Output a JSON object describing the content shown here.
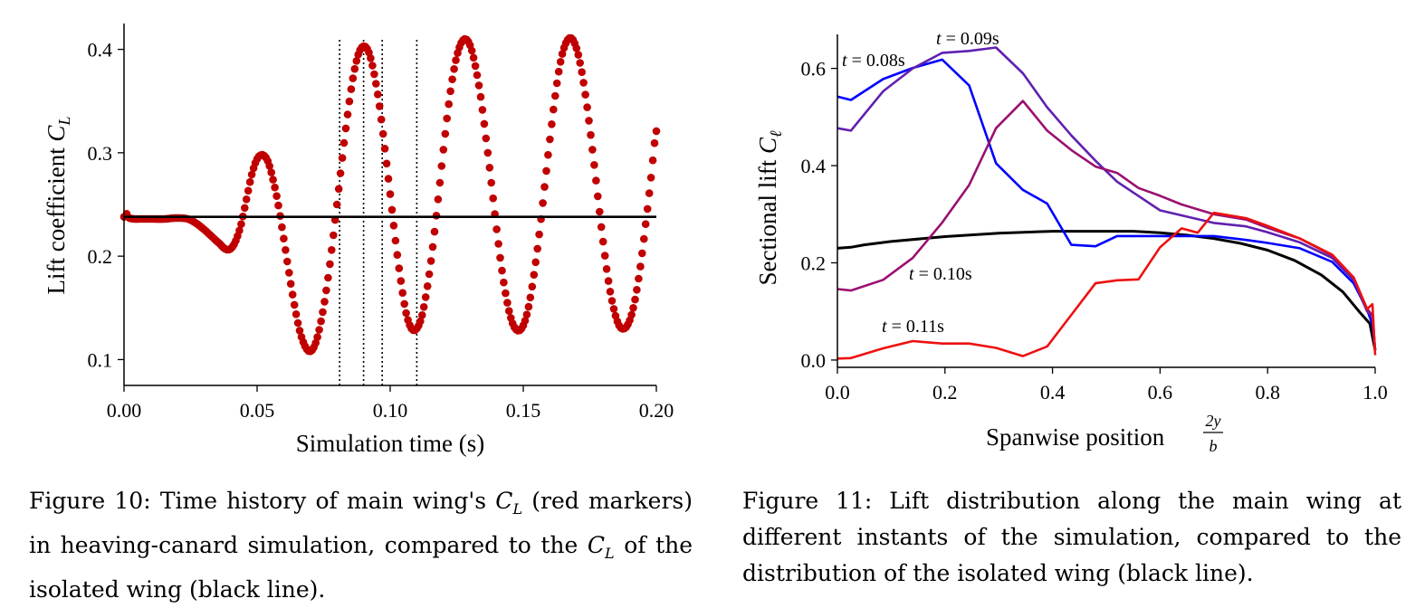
{
  "captions": {
    "fig10": "Figure 10: Time history of main wing's C_L (red markers) in heaving-canard simulation, compared to the C_L of the isolated wing (black line).",
    "fig11": "Figure 11: Lift distribution along the main wing at different instants of the simulation, compared to the distribution of the isolated wing (black line)."
  },
  "chart_data": [
    {
      "type": "scatter",
      "xlabel": "Simulation time (s)",
      "ylabel": "Lift coefficient C_L",
      "xlim": [
        0,
        0.2
      ],
      "ylim": [
        0.075,
        0.425
      ],
      "xticks": [
        "0.00",
        "0.05",
        "0.10",
        "0.15",
        "0.20"
      ],
      "yticks": [
        "0.1",
        "0.2",
        "0.3",
        "0.4"
      ],
      "vlines": [
        0.081,
        0.09,
        0.097,
        0.11
      ],
      "colors": {
        "markers": "#c00000",
        "baseline": "#000000"
      },
      "series": [
        {
          "kind": "markers",
          "x": [
            0.0,
            0.001,
            0.002,
            0.004,
            0.006,
            0.01,
            0.015,
            0.02,
            0.024,
            0.027,
            0.03,
            0.033,
            0.036,
            0.038,
            0.04,
            0.042,
            0.044,
            0.046,
            0.048,
            0.05,
            0.052,
            0.054,
            0.056,
            0.058,
            0.06,
            0.062,
            0.064,
            0.066,
            0.068,
            0.07,
            0.072,
            0.074,
            0.076,
            0.078,
            0.08,
            0.082,
            0.084,
            0.086,
            0.088,
            0.09,
            0.092,
            0.094,
            0.096,
            0.098,
            0.1,
            0.102,
            0.104,
            0.106,
            0.108,
            0.11,
            0.112,
            0.114,
            0.116,
            0.118,
            0.12,
            0.122,
            0.124,
            0.126,
            0.128,
            0.13,
            0.132,
            0.134,
            0.136,
            0.138,
            0.14,
            0.142,
            0.144,
            0.146,
            0.148,
            0.15,
            0.152,
            0.154,
            0.156,
            0.158,
            0.16,
            0.162,
            0.164,
            0.166,
            0.168,
            0.17,
            0.172,
            0.174,
            0.176,
            0.178,
            0.18,
            0.182,
            0.184,
            0.186,
            0.188,
            0.19,
            0.192,
            0.194,
            0.196,
            0.198,
            0.2
          ],
          "y": [
            0.238,
            0.241,
            0.237,
            0.236,
            0.236,
            0.236,
            0.236,
            0.237,
            0.236,
            0.232,
            0.226,
            0.219,
            0.212,
            0.207,
            0.207,
            0.215,
            0.231,
            0.255,
            0.279,
            0.294,
            0.298,
            0.292,
            0.274,
            0.249,
            0.217,
            0.184,
            0.153,
            0.128,
            0.113,
            0.108,
            0.116,
            0.137,
            0.167,
            0.206,
            0.25,
            0.295,
            0.337,
            0.372,
            0.395,
            0.403,
            0.397,
            0.376,
            0.345,
            0.304,
            0.26,
            0.215,
            0.176,
            0.145,
            0.13,
            0.13,
            0.143,
            0.171,
            0.209,
            0.255,
            0.303,
            0.347,
            0.381,
            0.402,
            0.41,
            0.404,
            0.384,
            0.354,
            0.314,
            0.271,
            0.226,
            0.186,
            0.155,
            0.135,
            0.128,
            0.133,
            0.151,
            0.182,
            0.221,
            0.267,
            0.313,
            0.355,
            0.388,
            0.406,
            0.411,
            0.401,
            0.378,
            0.344,
            0.303,
            0.258,
            0.214,
            0.176,
            0.149,
            0.133,
            0.13,
            0.138,
            0.158,
            0.19,
            0.231,
            0.276,
            0.321
          ]
        },
        {
          "kind": "line",
          "x": [
            0.0,
            0.2
          ],
          "y": [
            0.238,
            0.238
          ]
        }
      ]
    },
    {
      "type": "line",
      "xlabel": "Spanwise position 2y/b",
      "ylabel": "Sectional lift C_ℓ",
      "xlim": [
        0,
        1
      ],
      "ylim": [
        -0.015,
        0.67
      ],
      "xticks": [
        "0.0",
        "0.2",
        "0.4",
        "0.6",
        "0.8",
        "1.0"
      ],
      "yticks": [
        "0.0",
        "0.2",
        "0.4",
        "0.6"
      ],
      "series": [
        {
          "name": "t = 0.08s",
          "color": "#0000ff",
          "x": [
            0.0,
            0.025,
            0.085,
            0.14,
            0.195,
            0.245,
            0.295,
            0.345,
            0.39,
            0.435,
            0.48,
            0.52,
            0.6,
            0.7,
            0.76,
            0.8,
            0.86,
            0.92,
            0.96,
            0.985,
            0.995,
            1.0
          ],
          "y": [
            0.542,
            0.535,
            0.578,
            0.601,
            0.618,
            0.565,
            0.405,
            0.35,
            0.322,
            0.237,
            0.234,
            0.255,
            0.255,
            0.255,
            0.247,
            0.241,
            0.23,
            0.202,
            0.158,
            0.103,
            0.073,
            0.02
          ]
        },
        {
          "name": "t = 0.09s",
          "color": "#6020b0",
          "x": [
            0.0,
            0.025,
            0.085,
            0.14,
            0.195,
            0.245,
            0.295,
            0.345,
            0.39,
            0.435,
            0.48,
            0.52,
            0.6,
            0.7,
            0.76,
            0.8,
            0.86,
            0.92,
            0.96,
            0.985,
            0.995,
            1.0
          ],
          "y": [
            0.477,
            0.472,
            0.553,
            0.6,
            0.632,
            0.636,
            0.643,
            0.59,
            0.52,
            0.462,
            0.41,
            0.367,
            0.308,
            0.282,
            0.275,
            0.263,
            0.242,
            0.21,
            0.165,
            0.1,
            0.09,
            0.02
          ]
        },
        {
          "name": "t = 0.10s",
          "color": "#9a1070",
          "x": [
            0.0,
            0.025,
            0.085,
            0.14,
            0.195,
            0.245,
            0.295,
            0.345,
            0.39,
            0.435,
            0.48,
            0.52,
            0.56,
            0.6,
            0.64,
            0.7,
            0.76,
            0.8,
            0.86,
            0.92,
            0.96,
            0.985,
            0.995,
            1.0
          ],
          "y": [
            0.146,
            0.143,
            0.165,
            0.21,
            0.283,
            0.36,
            0.477,
            0.533,
            0.472,
            0.432,
            0.398,
            0.385,
            0.354,
            0.338,
            0.32,
            0.3,
            0.289,
            0.272,
            0.25,
            0.215,
            0.17,
            0.105,
            0.092,
            0.02
          ]
        },
        {
          "name": "t = 0.11s",
          "color": "#ee1010",
          "x": [
            0.0,
            0.025,
            0.085,
            0.14,
            0.195,
            0.245,
            0.295,
            0.345,
            0.39,
            0.435,
            0.48,
            0.52,
            0.56,
            0.6,
            0.64,
            0.67,
            0.7,
            0.76,
            0.8,
            0.86,
            0.92,
            0.96,
            0.985,
            0.995,
            1.0
          ],
          "y": [
            0.003,
            0.004,
            0.024,
            0.039,
            0.034,
            0.034,
            0.025,
            0.008,
            0.028,
            0.093,
            0.158,
            0.164,
            0.166,
            0.232,
            0.271,
            0.262,
            0.303,
            0.292,
            0.276,
            0.25,
            0.217,
            0.17,
            0.105,
            0.115,
            0.01
          ]
        },
        {
          "name": "",
          "color": "#000000",
          "x": [
            0.0,
            0.025,
            0.05,
            0.1,
            0.2,
            0.3,
            0.4,
            0.5,
            0.55,
            0.6,
            0.65,
            0.7,
            0.75,
            0.8,
            0.85,
            0.9,
            0.94,
            0.97,
            0.99,
            1.0
          ],
          "y": [
            0.23,
            0.232,
            0.237,
            0.244,
            0.254,
            0.261,
            0.265,
            0.265,
            0.265,
            0.262,
            0.257,
            0.25,
            0.24,
            0.226,
            0.205,
            0.175,
            0.14,
            0.1,
            0.075,
            0.02
          ]
        }
      ]
    }
  ]
}
